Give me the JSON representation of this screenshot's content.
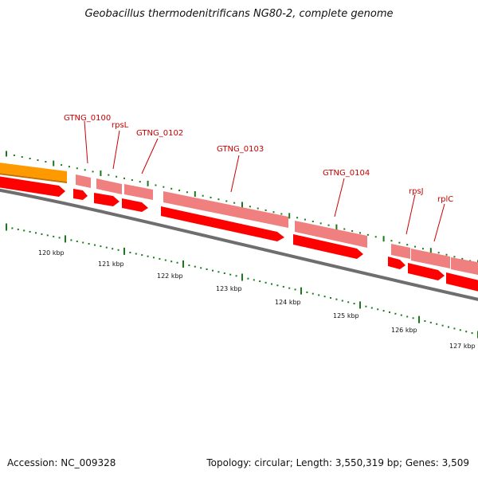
{
  "title": "Geobacillus thermodenitrificans NG80-2, complete genome",
  "footer": {
    "accession": "Accession: NC_009328",
    "summary": "Topology: circular; Length: 3,550,319 bp; Genes: 3,509"
  },
  "colors": {
    "cds": "#ff0000",
    "gene": "#f08080",
    "other_feature": "#ff9900",
    "backbone": "#808080",
    "tick": "#1a7a1a",
    "label": "#cc0000"
  },
  "ruler": {
    "unit": "kbp",
    "ticks": [
      {
        "kbp": 120,
        "label": "120 kbp"
      },
      {
        "kbp": 121,
        "label": "121 kbp"
      },
      {
        "kbp": 122,
        "label": "122 kbp"
      },
      {
        "kbp": 123,
        "label": "123 kbp"
      },
      {
        "kbp": 124,
        "label": "124 kbp"
      },
      {
        "kbp": 125,
        "label": "125 kbp"
      },
      {
        "kbp": 126,
        "label": "126 kbp"
      },
      {
        "kbp": 127,
        "label": "127 kbp"
      }
    ]
  },
  "labels": {
    "gtng_0100": "GTNG_0100",
    "rpsl": "rpsL",
    "gtng_0102": "GTNG_0102",
    "gtng_0103": "GTNG_0103",
    "gtng_0104": "GTNG_0104",
    "rpsj": "rpsJ",
    "rplc": "rplC"
  }
}
